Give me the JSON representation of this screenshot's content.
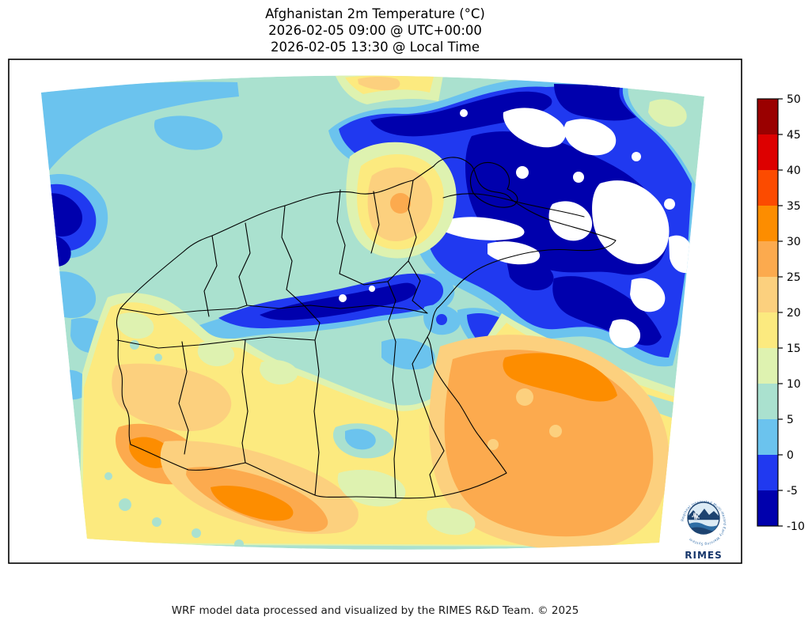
{
  "title": {
    "line1": "Afghanistan 2m Temperature (°C)",
    "line2": "2026-02-05 09:00 @ UTC+00:00",
    "line3": "2026-02-05 13:30 @ Local Time"
  },
  "footer": {
    "text": "WRF model data processed and visualized by the RIMES R&D Team. © 2025"
  },
  "colorbar": {
    "ticks": [
      "50",
      "45",
      "40",
      "35",
      "30",
      "25",
      "20",
      "15",
      "10",
      "5",
      "0",
      "-5",
      "-10"
    ],
    "bands": [
      {
        "id": "45_50",
        "min": 45,
        "max": 50,
        "color": "#9a0000"
      },
      {
        "id": "40_45",
        "min": 40,
        "max": 45,
        "color": "#dd0000"
      },
      {
        "id": "35_40",
        "min": 35,
        "max": 40,
        "color": "#fc4b00"
      },
      {
        "id": "30_35",
        "min": 30,
        "max": 35,
        "color": "#fd8d00"
      },
      {
        "id": "25_30",
        "min": 25,
        "max": 30,
        "color": "#fcaa4e"
      },
      {
        "id": "20_25",
        "min": 20,
        "max": 25,
        "color": "#fcd07e"
      },
      {
        "id": "15_20",
        "min": 15,
        "max": 20,
        "color": "#fcea7f"
      },
      {
        "id": "10_15",
        "min": 10,
        "max": 15,
        "color": "#def2b0"
      },
      {
        "id": "5_10",
        "min": 5,
        "max": 10,
        "color": "#aae1cf"
      },
      {
        "id": "0_5",
        "min": 0,
        "max": 5,
        "color": "#6bc3ee"
      },
      {
        "id": "m5_0",
        "min": -5,
        "max": 0,
        "color": "#2039f0"
      },
      {
        "id": "m10_m5",
        "min": -10,
        "max": -5,
        "color": "#0000ad"
      },
      {
        "id": "below_m10",
        "min": null,
        "max": -10,
        "color": "#ffffff"
      }
    ]
  },
  "logo": {
    "label": "RIMES",
    "ring_text": "Regional Integrated Multi-Hazard Early Warning System",
    "accent": "#16366b"
  },
  "map": {
    "frame_color": "#000000",
    "boundary_color": "#000000",
    "background": "#ffffff"
  }
}
